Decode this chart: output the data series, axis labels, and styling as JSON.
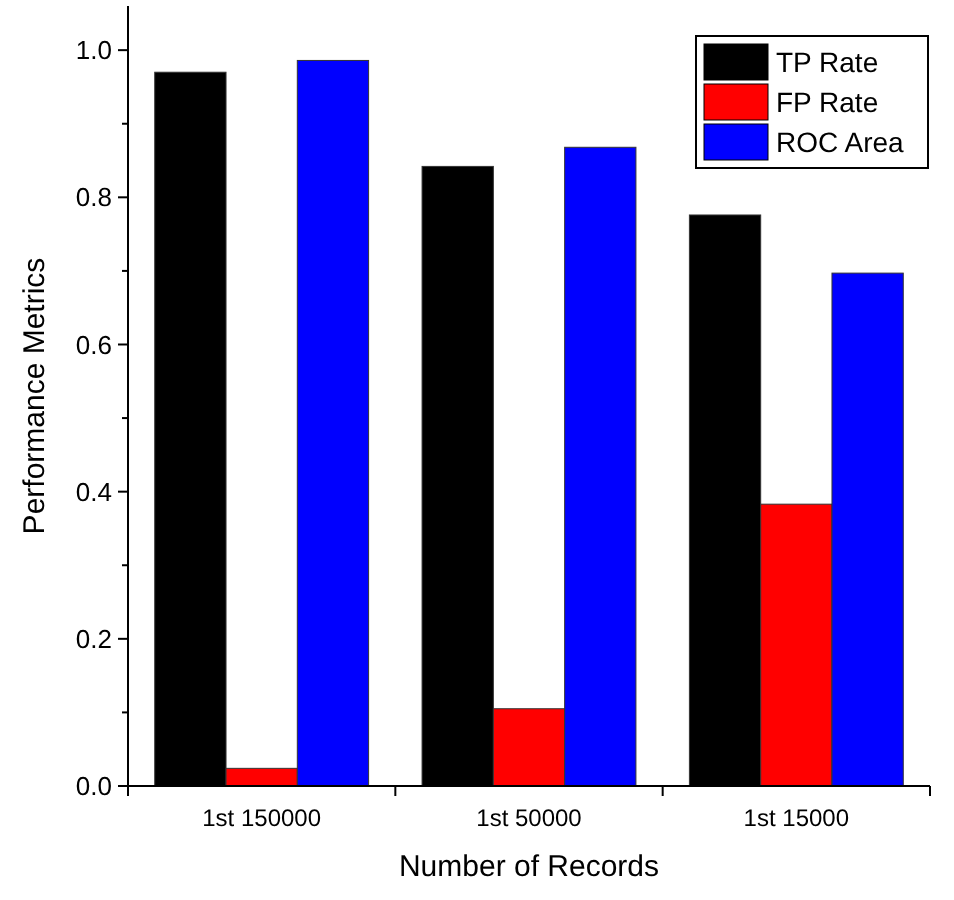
{
  "chart_data": {
    "type": "bar",
    "xlabel": "Number of Records",
    "ylabel": "Performance Metrics",
    "categories": [
      "1st 150000",
      "1st 50000",
      "1st 15000"
    ],
    "series": [
      {
        "name": "TP Rate",
        "color": "#000000",
        "values": [
          0.97,
          0.842,
          0.776
        ]
      },
      {
        "name": "FP Rate",
        "color": "#ff0000",
        "values": [
          0.024,
          0.105,
          0.383
        ]
      },
      {
        "name": "ROC Area",
        "color": "#0000ff",
        "values": [
          0.986,
          0.868,
          0.697
        ]
      }
    ],
    "ylim": [
      0,
      1.06
    ],
    "yticks": [
      {
        "value": 0,
        "label": "0.0"
      },
      {
        "value": 0.2,
        "label": "0.2"
      },
      {
        "value": 0.4,
        "label": "0.4"
      },
      {
        "value": 0.6,
        "label": "0.6"
      },
      {
        "value": 0.8,
        "label": "0.8"
      },
      {
        "value": 1,
        "label": "1.0"
      }
    ],
    "legend": "top right",
    "grid": false
  }
}
